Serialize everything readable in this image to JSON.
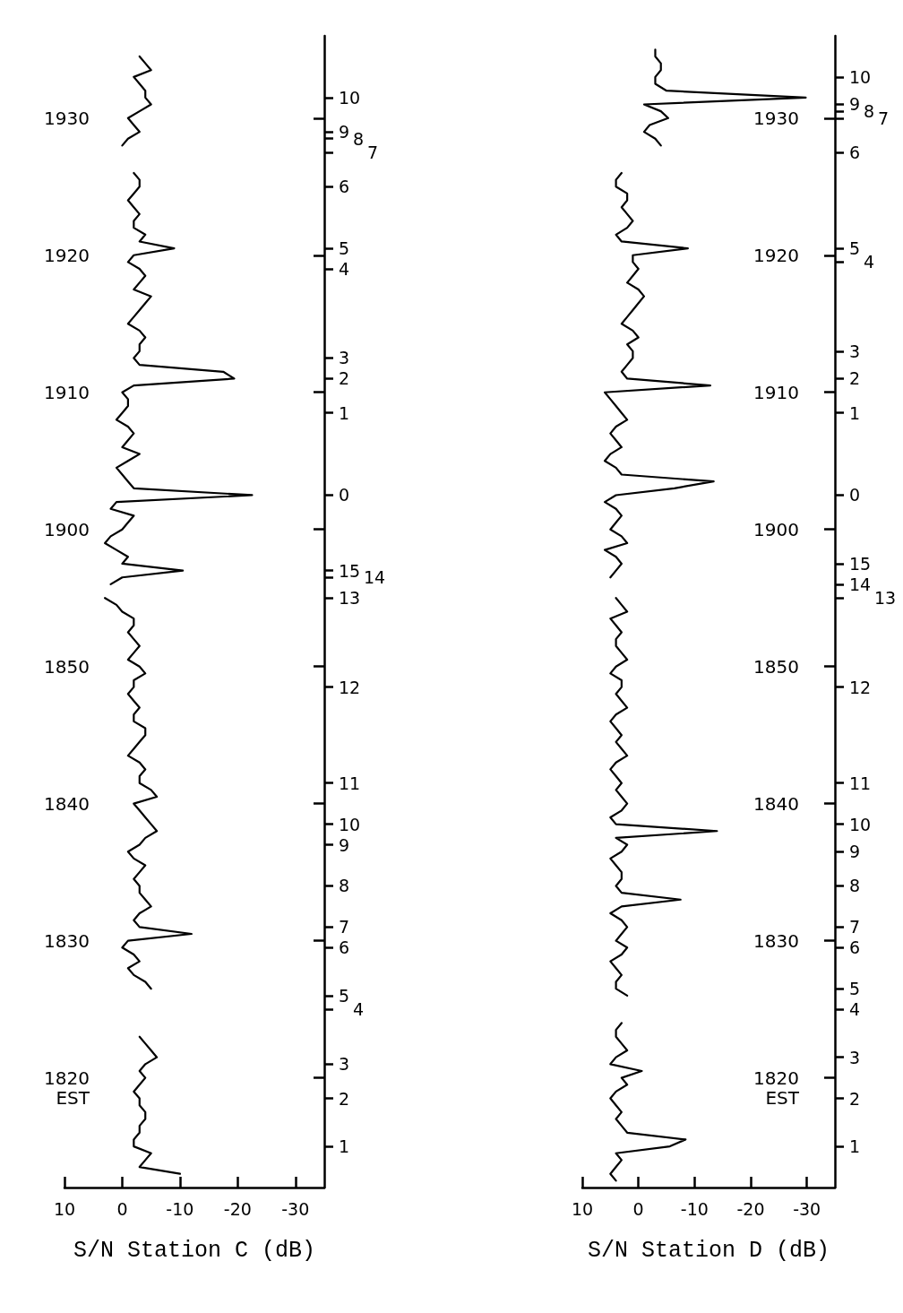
{
  "chart_data": [
    {
      "type": "line",
      "orientation": "horizontal",
      "xlabel": "S/N Station C (dB)",
      "ylabel": "EST",
      "grid": false,
      "marker": "none",
      "xlim": [
        10,
        -35
      ],
      "xticks": [
        10,
        0,
        -10,
        -20,
        -30
      ],
      "categories": [
        null,
        null,
        null,
        null,
        null,
        null,
        null,
        null,
        null,
        null,
        null,
        null,
        "1930",
        null,
        null,
        null,
        null,
        null,
        null,
        null,
        null,
        null,
        null,
        null,
        null,
        null,
        null,
        null,
        null,
        null,
        null,
        null,
        "1920",
        null,
        null,
        null,
        null,
        null,
        null,
        null,
        null,
        null,
        null,
        null,
        null,
        null,
        null,
        null,
        null,
        null,
        null,
        null,
        "1910",
        null,
        null,
        null,
        null,
        null,
        null,
        null,
        null,
        null,
        null,
        null,
        null,
        null,
        null,
        null,
        null,
        null,
        null,
        null,
        "1900",
        null,
        null,
        null,
        null,
        null,
        null,
        null,
        null,
        null,
        null,
        null,
        null,
        null,
        null,
        null,
        null,
        null,
        null,
        null,
        "1850",
        null,
        null,
        null,
        null,
        null,
        null,
        null,
        null,
        null,
        null,
        null,
        null,
        null,
        null,
        null,
        null,
        null,
        null,
        null,
        "1840",
        null,
        null,
        null,
        null,
        null,
        null,
        null,
        null,
        null,
        null,
        null,
        null,
        null,
        null,
        null,
        null,
        null,
        null,
        null,
        "1830",
        null,
        null,
        null,
        null,
        null,
        null,
        null,
        null,
        null,
        null,
        null,
        null,
        null,
        null,
        null,
        null,
        null,
        null,
        null,
        "1820",
        null,
        null,
        null,
        null,
        null,
        null,
        null,
        null,
        null,
        null,
        null,
        null,
        null,
        null,
        null,
        null
      ],
      "y2_categories": [
        null,
        null,
        null,
        null,
        null,
        null,
        null,
        null,
        null,
        "10",
        null,
        null,
        null,
        null,
        "9",
        "8",
        null,
        "7",
        null,
        null,
        null,
        null,
        "6",
        null,
        null,
        null,
        null,
        null,
        null,
        null,
        null,
        "5",
        null,
        null,
        "4",
        null,
        null,
        null,
        null,
        null,
        null,
        null,
        null,
        null,
        null,
        null,
        null,
        "3",
        null,
        null,
        "2",
        null,
        null,
        null,
        null,
        "1",
        null,
        null,
        null,
        null,
        null,
        null,
        null,
        null,
        null,
        null,
        null,
        "0",
        null,
        null,
        null,
        null,
        null,
        null,
        null,
        null,
        null,
        null,
        "15",
        "14",
        null,
        null,
        "13",
        null,
        null,
        null,
        null,
        null,
        null,
        null,
        null,
        null,
        null,
        null,
        null,
        "12",
        null,
        null,
        null,
        null,
        null,
        null,
        null,
        null,
        null,
        null,
        null,
        null,
        null,
        "11",
        null,
        null,
        null,
        null,
        null,
        "10",
        null,
        null,
        "9",
        null,
        null,
        null,
        null,
        null,
        "8",
        null,
        null,
        null,
        null,
        null,
        "7",
        null,
        null,
        "6",
        null,
        null,
        null,
        null,
        null,
        null,
        "5",
        null,
        "4",
        null,
        null,
        null,
        null,
        null,
        null,
        null,
        "3",
        null,
        null,
        null,
        null,
        "2",
        null,
        null,
        null,
        null,
        null,
        null,
        "1",
        null,
        null,
        null,
        null,
        null,
        null
      ],
      "series": [
        {
          "color": "#000000",
          "values": [
            null,
            null,
            null,
            -3,
            -4,
            -5,
            -2,
            -3,
            -4,
            -4,
            -5,
            -3,
            -1,
            -2,
            -3,
            -1,
            0,
            null,
            null,
            null,
            -2,
            -3,
            -3,
            -2,
            -1,
            -2,
            -3,
            -2,
            -2,
            -4,
            -3,
            -9,
            -2,
            -1,
            -3,
            -4,
            -3,
            -2,
            -5,
            -4,
            -3,
            -2,
            -1,
            -3,
            -4,
            -3,
            -3,
            -2,
            -3,
            -17.5,
            -19.4,
            -2,
            0,
            -1,
            -1,
            0,
            1,
            -1,
            -2,
            -1,
            0,
            -3,
            -1,
            1,
            0,
            -1,
            -2,
            -22.5,
            1,
            2,
            -2,
            -1,
            0,
            2,
            3,
            1,
            -1,
            0,
            -10.5,
            0,
            2,
            null,
            3,
            1,
            0,
            -2,
            -2,
            -1,
            -2,
            -3,
            -2,
            -1,
            -3,
            -4,
            -2,
            -2,
            -1,
            -2,
            -3,
            -2,
            -2,
            -4,
            -4,
            -3,
            -2,
            -1,
            -3,
            -4,
            -3,
            -3,
            -5,
            -6,
            -2,
            -3,
            -4,
            -5,
            -6,
            -4,
            -3,
            -1,
            -2,
            -4,
            -3,
            -2,
            -3,
            -3,
            -4,
            -5,
            -3,
            -2,
            -3,
            -12,
            -1,
            0,
            -2,
            -3,
            -1,
            -2,
            -4,
            -5,
            null,
            null,
            null,
            null,
            null,
            null,
            -3,
            -4,
            -5,
            -6,
            -4,
            -3,
            -4,
            -3,
            -2,
            -3,
            -3,
            -4,
            -4,
            -3,
            -3,
            -2,
            -2,
            -5,
            -4,
            -3,
            -10,
            null,
            null
          ]
        }
      ]
    },
    {
      "type": "line",
      "orientation": "horizontal",
      "xlabel": "S/N Station D (dB)",
      "ylabel": "EST",
      "grid": false,
      "marker": "none",
      "xlim": [
        10,
        -35
      ],
      "xticks": [
        10,
        0,
        -10,
        -20,
        -30
      ],
      "categories": [
        null,
        null,
        null,
        null,
        null,
        null,
        null,
        null,
        null,
        null,
        null,
        null,
        "1930",
        null,
        null,
        null,
        null,
        null,
        null,
        null,
        null,
        null,
        null,
        null,
        null,
        null,
        null,
        null,
        null,
        null,
        null,
        null,
        "1920",
        null,
        null,
        null,
        null,
        null,
        null,
        null,
        null,
        null,
        null,
        null,
        null,
        null,
        null,
        null,
        null,
        null,
        null,
        null,
        "1910",
        null,
        null,
        null,
        null,
        null,
        null,
        null,
        null,
        null,
        null,
        null,
        null,
        null,
        null,
        null,
        null,
        null,
        null,
        null,
        "1900",
        null,
        null,
        null,
        null,
        null,
        null,
        null,
        null,
        null,
        null,
        null,
        null,
        null,
        null,
        null,
        null,
        null,
        null,
        null,
        "1850",
        null,
        null,
        null,
        null,
        null,
        null,
        null,
        null,
        null,
        null,
        null,
        null,
        null,
        null,
        null,
        null,
        null,
        null,
        null,
        "1840",
        null,
        null,
        null,
        null,
        null,
        null,
        null,
        null,
        null,
        null,
        null,
        null,
        null,
        null,
        null,
        null,
        null,
        null,
        null,
        "1830",
        null,
        null,
        null,
        null,
        null,
        null,
        null,
        null,
        null,
        null,
        null,
        null,
        null,
        null,
        null,
        null,
        null,
        null,
        null,
        "1820",
        null,
        null,
        null,
        null,
        null,
        null,
        null,
        null,
        null,
        null,
        null,
        null,
        null,
        null,
        null,
        null
      ],
      "y2_categories": [
        null,
        null,
        null,
        null,
        null,
        null,
        "10",
        null,
        null,
        null,
        "9",
        "8",
        "7",
        null,
        null,
        null,
        null,
        "6",
        null,
        null,
        null,
        null,
        null,
        null,
        null,
        null,
        null,
        null,
        null,
        null,
        null,
        "5",
        null,
        "4",
        null,
        null,
        null,
        null,
        null,
        null,
        null,
        null,
        null,
        null,
        null,
        null,
        "3",
        null,
        null,
        null,
        "2",
        null,
        null,
        null,
        null,
        "1",
        null,
        null,
        null,
        null,
        null,
        null,
        null,
        null,
        null,
        null,
        null,
        "0",
        null,
        null,
        null,
        null,
        null,
        null,
        null,
        null,
        null,
        "15",
        null,
        null,
        "14",
        null,
        "13",
        null,
        null,
        null,
        null,
        null,
        null,
        null,
        null,
        null,
        null,
        null,
        null,
        "12",
        null,
        null,
        null,
        null,
        null,
        null,
        null,
        null,
        null,
        null,
        null,
        null,
        null,
        "11",
        null,
        null,
        null,
        null,
        null,
        "10",
        null,
        null,
        null,
        "9",
        null,
        null,
        null,
        null,
        "8",
        null,
        null,
        null,
        null,
        null,
        "7",
        null,
        null,
        "6",
        null,
        null,
        null,
        null,
        null,
        "5",
        null,
        null,
        "4",
        null,
        null,
        null,
        null,
        null,
        null,
        "3",
        null,
        null,
        null,
        null,
        null,
        "2",
        null,
        null,
        null,
        null,
        null,
        null,
        "1",
        null,
        null,
        null,
        null,
        null,
        null
      ],
      "series": [
        {
          "color": "#000000",
          "values": [
            null,
            null,
            -3,
            -3,
            -4,
            -4,
            -3,
            -3,
            -5,
            -29.8,
            -1,
            -4,
            -5.3,
            -2,
            -1,
            -3,
            -4,
            null,
            null,
            null,
            3,
            4,
            4,
            2,
            2,
            3,
            2,
            1,
            2,
            4,
            3,
            -8.8,
            1,
            1,
            0,
            1,
            2,
            0,
            -1,
            0,
            1,
            2,
            3,
            1,
            0,
            2,
            1,
            1,
            2,
            3,
            2,
            -12.8,
            6,
            5,
            4,
            3,
            2,
            4,
            5,
            4,
            3,
            5,
            6,
            4,
            3,
            -13.4,
            -6.4,
            4,
            6,
            4,
            3,
            4,
            5,
            3,
            2,
            6,
            4,
            3,
            4,
            5,
            null,
            null,
            4,
            3,
            2,
            5,
            4,
            3,
            4,
            4,
            3,
            2,
            4,
            5,
            3,
            3,
            4,
            3,
            2,
            4,
            5,
            4,
            3,
            4,
            3,
            2,
            4,
            5,
            4,
            3,
            4,
            3,
            2,
            3,
            5,
            4,
            -14,
            4,
            2,
            3,
            5,
            4,
            3,
            3,
            4,
            3,
            -7.5,
            3,
            5,
            3,
            2,
            3,
            4,
            2,
            3,
            5,
            4,
            3,
            4,
            4,
            2,
            null,
            null,
            null,
            3,
            4,
            4,
            3,
            2,
            4,
            5,
            -0.6,
            3,
            2,
            4,
            5,
            4,
            3,
            4,
            3,
            2,
            -8.4,
            -5.6,
            4,
            3,
            4,
            5,
            4,
            null
          ]
        }
      ]
    }
  ]
}
